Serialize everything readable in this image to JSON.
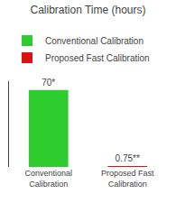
{
  "chart_data": {
    "type": "bar",
    "title": "Calibration Time (hours)",
    "categories": [
      "Conventional\nCalibration",
      "Proposed Fast\nCalibration"
    ],
    "series": [
      {
        "name": "Conventional Calibration",
        "color": "#2ecc2e",
        "values": [
          70,
          null
        ],
        "value_labels": [
          "70*",
          null
        ]
      },
      {
        "name": "Proposed Fast Calibration",
        "color": "#dd1111",
        "values": [
          null,
          0.75
        ],
        "value_labels": [
          null,
          "0.75**"
        ]
      }
    ],
    "ylim": [
      0,
      78
    ],
    "data_labels": true,
    "tick_labels": "x",
    "legend": "upper left"
  }
}
